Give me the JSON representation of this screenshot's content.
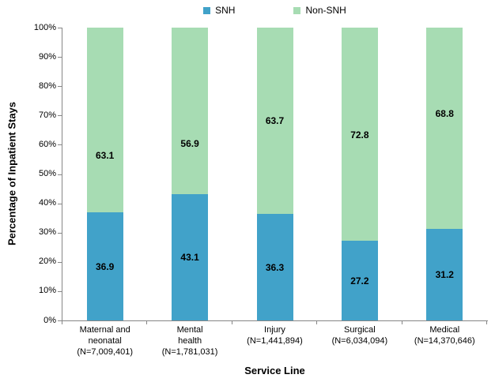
{
  "legend": {
    "items": [
      {
        "label": "SNH",
        "color": "#41A2C9"
      },
      {
        "label": "Non-SNH",
        "color": "#A7DCB3"
      }
    ]
  },
  "chart_data": {
    "type": "bar",
    "stacked": true,
    "title": "",
    "xlabel": "Service Line",
    "ylabel": "Percentage of Inpatient Stays",
    "ylim": [
      0,
      100
    ],
    "ytick_step": 10,
    "ytick_labels": [
      "0%",
      "10%",
      "20%",
      "30%",
      "40%",
      "50%",
      "60%",
      "70%",
      "80%",
      "90%",
      "100%"
    ],
    "grid": false,
    "legend_position": "top-center",
    "axis_color": "#868686",
    "label_color": "#000000",
    "categories": [
      {
        "lines": [
          "Maternal and",
          "neonatal",
          "(N=7,009,401)"
        ]
      },
      {
        "lines": [
          "Mental",
          "health",
          "(N=1,781,031)"
        ]
      },
      {
        "lines": [
          "Injury",
          "(N=1,441,894)"
        ]
      },
      {
        "lines": [
          "Surgical",
          "(N=6,034,094)"
        ]
      },
      {
        "lines": [
          "Medical",
          "(N=14,370,646)"
        ]
      }
    ],
    "series": [
      {
        "name": "SNH",
        "color": "#41A2C9",
        "values": [
          36.9,
          43.1,
          36.3,
          27.2,
          31.2
        ]
      },
      {
        "name": "Non-SNH",
        "color": "#A7DCB3",
        "values": [
          63.1,
          56.9,
          63.7,
          72.8,
          68.8
        ],
        "label_y_pct": [
          56.3,
          60.4,
          68.3,
          63.3,
          70.6
        ]
      }
    ]
  }
}
